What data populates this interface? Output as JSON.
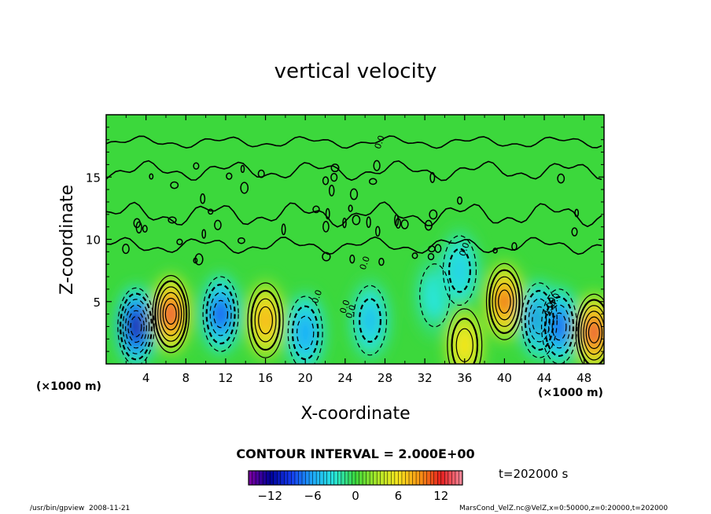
{
  "chart_data": {
    "type": "heatmap",
    "title": "vertical velocity",
    "xlabel": "X-coordinate",
    "ylabel": "Z-coordinate",
    "x_unit_left": "(×1000 m)",
    "x_unit_right": "(×1000 m)",
    "xlim": [
      0,
      50
    ],
    "ylim": [
      0,
      20
    ],
    "xticks": [
      "4",
      "8",
      "12",
      "16",
      "20",
      "24",
      "28",
      "32",
      "36",
      "40",
      "44",
      "48"
    ],
    "xtick_values": [
      4,
      8,
      12,
      16,
      20,
      24,
      28,
      32,
      36,
      40,
      44,
      48
    ],
    "yticks": [
      "5",
      "10",
      "15"
    ],
    "ytick_values": [
      5,
      10,
      15
    ],
    "contour_interval": "CONTOUR INTERVAL = 2.000E+00",
    "contour_labels": [
      "0.0",
      "0.0",
      "0.0",
      "0.0",
      "0.0",
      "0.0",
      "4.00",
      "-4.0"
    ],
    "colorbar": {
      "ticks": [
        "−12",
        "−6",
        "0",
        "6",
        "12"
      ],
      "tick_values": [
        -12,
        -6,
        0,
        6,
        12
      ],
      "range": [
        -15,
        15
      ]
    },
    "cells": [
      {
        "x": 3,
        "z": 3,
        "w": -13
      },
      {
        "x": 6.5,
        "z": 4,
        "w": 13
      },
      {
        "x": 11.5,
        "z": 4,
        "w": -9
      },
      {
        "x": 16,
        "z": 3.5,
        "w": 8
      },
      {
        "x": 20,
        "z": 2.5,
        "w": -6
      },
      {
        "x": 26.5,
        "z": 3.5,
        "w": -5
      },
      {
        "x": 33,
        "z": 5.5,
        "w": -3
      },
      {
        "x": 35.5,
        "z": 7.5,
        "w": -4
      },
      {
        "x": 36,
        "z": 1.5,
        "w": 6
      },
      {
        "x": 40,
        "z": 5,
        "w": 11
      },
      {
        "x": 43.5,
        "z": 3.5,
        "w": -9
      },
      {
        "x": 45.5,
        "z": 3,
        "w": -8
      },
      {
        "x": 49,
        "z": 2.5,
        "w": 13
      }
    ]
  },
  "annotations": {
    "time": "t=202000 s",
    "footer_left": "/usr/bin/gpview  2008-11-21",
    "footer_right": "MarsCond_VelZ.nc@VelZ,x=0:50000,z=0:20000,t=202000"
  }
}
